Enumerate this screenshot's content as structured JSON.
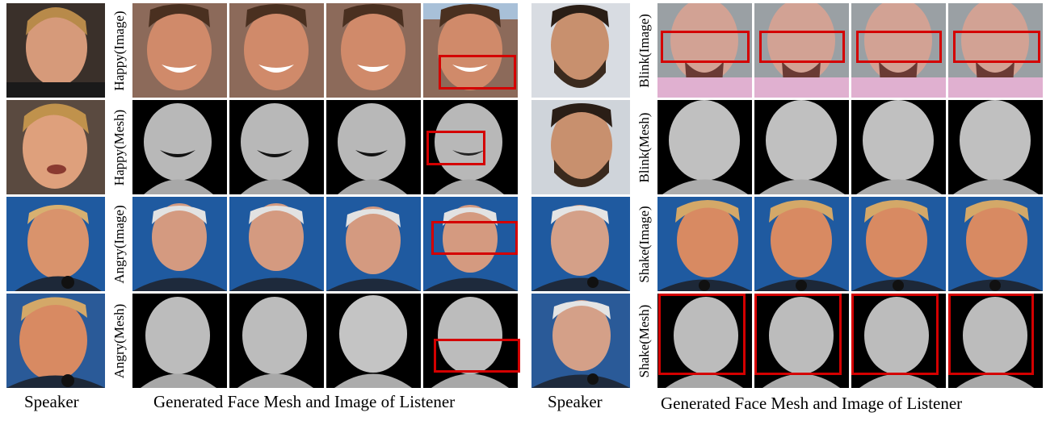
{
  "captions": {
    "left_speaker": "Speaker",
    "left_listener": "Generated Face Mesh and Image of Listener",
    "right_speaker": "Speaker",
    "right_listener": "Generated Face Mesh and Image of Listener"
  },
  "row_labels_left": [
    "Happy(Image)",
    "Happy(Mesh)",
    "Angry(Image)",
    "Angry(Mesh)"
  ],
  "row_labels_right": [
    "Blink(Image)",
    "Blink(Mesh)",
    "Shake(Image)",
    "Shake(Mesh)"
  ],
  "colors": {
    "highlight": "#d40000",
    "mesh_face": "#b8b8b8",
    "mesh_background": "#000000",
    "debate_background": "#1f5aa0"
  }
}
